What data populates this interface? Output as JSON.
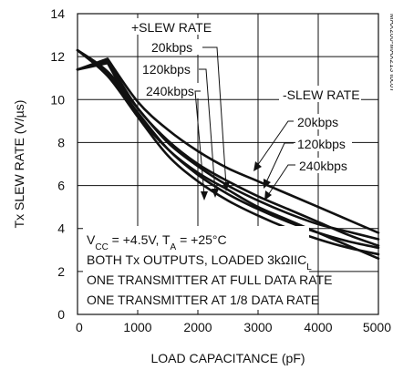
{
  "figure_id": "MAX200-MAX213 toc07",
  "chart_data": {
    "type": "line",
    "title": "",
    "xlabel": "LOAD CAPACITANCE (pF)",
    "ylabel": "Tx SLEW RATE (V/µs)",
    "xlim": [
      0,
      5000
    ],
    "ylim": [
      0,
      14
    ],
    "x_ticks": [
      "0",
      "1000",
      "2000",
      "3000",
      "4000",
      "5000"
    ],
    "y_ticks": [
      "0",
      "2",
      "4",
      "6",
      "8",
      "10",
      "12",
      "14"
    ],
    "grid": true,
    "series": [
      {
        "name": "+SLEW RATE 20kbps",
        "x": [
          0,
          500,
          1000,
          1500,
          2000,
          2500,
          3000,
          3500,
          4000,
          4500,
          5000
        ],
        "values": [
          12.3,
          11.3,
          9.6,
          8.0,
          6.9,
          6.0,
          5.3,
          4.7,
          4.2,
          3.85,
          3.5
        ]
      },
      {
        "name": "+SLEW RATE 120kbps",
        "x": [
          0,
          500,
          1000,
          1500,
          2000,
          2500,
          3000,
          3500,
          4000,
          4500,
          5000
        ],
        "values": [
          12.3,
          11.2,
          9.4,
          7.7,
          6.5,
          5.6,
          4.9,
          4.3,
          3.8,
          3.4,
          3.1
        ]
      },
      {
        "name": "+SLEW RATE 240kbps",
        "x": [
          0,
          500,
          1000,
          1500,
          2000,
          2500,
          3000,
          3500,
          4000,
          4500,
          5000
        ],
        "values": [
          12.3,
          11.1,
          9.2,
          7.4,
          6.2,
          5.3,
          4.6,
          4.0,
          3.5,
          3.1,
          2.8
        ]
      },
      {
        "name": "-SLEW RATE 20kbps",
        "x": [
          0,
          500,
          1000,
          1500,
          2000,
          2500,
          3000,
          3500,
          4000,
          4500,
          5000
        ],
        "values": [
          11.4,
          11.9,
          9.9,
          8.6,
          7.6,
          6.8,
          6.2,
          5.6,
          5.0,
          4.4,
          3.8
        ]
      },
      {
        "name": "-SLEW RATE 120kbps",
        "x": [
          0,
          500,
          1000,
          1500,
          2000,
          2500,
          3000,
          3500,
          4000,
          4500,
          5000
        ],
        "values": [
          11.4,
          11.8,
          9.6,
          8.1,
          7.0,
          6.2,
          5.5,
          4.9,
          4.3,
          3.7,
          3.2
        ]
      },
      {
        "name": "-SLEW RATE 240kbps",
        "x": [
          0,
          500,
          1000,
          1500,
          2000,
          2500,
          3000,
          3500,
          4000,
          4500,
          5000
        ],
        "values": [
          11.4,
          11.7,
          9.3,
          7.7,
          6.6,
          5.8,
          5.0,
          4.4,
          3.8,
          3.2,
          2.6
        ]
      }
    ],
    "annotations": {
      "plus_header": "+SLEW RATE",
      "plus_labels": [
        "20kbps",
        "120kbps",
        "240kbps"
      ],
      "minus_header": "-SLEW RATE",
      "minus_labels": [
        "20kbps",
        "120kbps",
        "240kbps"
      ],
      "conditions": [
        "VCC = +4.5V, TA = +25°C",
        "BOTH Tx OUTPUTS, LOADED 3kΩIICL",
        "ONE TRANSMITTER AT FULL DATA RATE",
        "ONE TRANSMITTER AT 1/8 DATA RATE"
      ]
    }
  }
}
